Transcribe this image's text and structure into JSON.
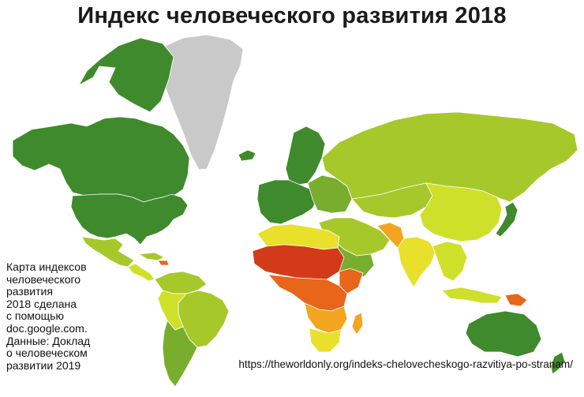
{
  "title": "Индекс человеческого развития 2018",
  "caption_lines": [
    "Карта индексов",
    "человеческого",
    "развития",
    "2018 сделана",
    "с помощью",
    "doc.google.com.",
    "Данные: Доклад",
    "о человеческом",
    "развитии 2019"
  ],
  "source_url": "https://theworldonly.org/indeks-chelovecheskogo-razvitiya-po-stranam/",
  "colors": {
    "very_high": "#3f8a2c",
    "high": "#79ad2e",
    "medium_high": "#a6c82a",
    "medium": "#cfe02a",
    "medium_low": "#e8e02a",
    "low": "#f2a51e",
    "very_low": "#e8651a",
    "lowest": "#d23a1a",
    "no_data": "#c9c9c9"
  }
}
